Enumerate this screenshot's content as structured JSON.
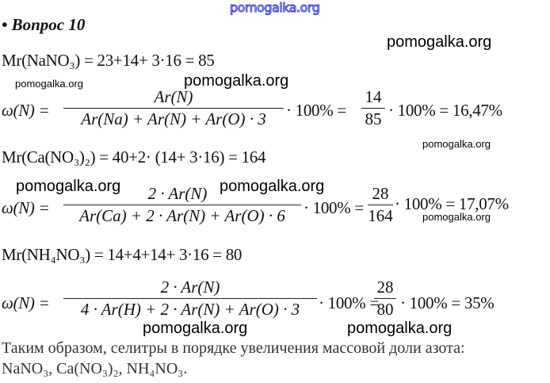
{
  "watermarks": {
    "top": "pomogalka.org",
    "items": [
      "pomogalka.org",
      "pomogalka.org",
      "pomogalka.org",
      "pomogalka.org",
      "pomogalka.org",
      "pomogalka.org",
      "pomogalka.org",
      "pomogalka.org",
      "pomogalka.org"
    ]
  },
  "heading": "• Вопрос 10",
  "lines": {
    "mr1": "Mr(NaNO₃) = 23+14+ 3·16 = 85",
    "mr2": "Mr(Ca(NO₃)₂) = 40+2· (14+ 3·16) = 164",
    "mr3": "Mr(NH₄NO₃) = 14+4+14+ 3·16 = 80"
  },
  "formulas": [
    {
      "lhs": "ω(N) =",
      "numerator": "Ar(N)",
      "denominator": "Ar(Na) + Ar(N) + Ar(O) · 3",
      "mid": "· 100% =",
      "frac_num": "14",
      "frac_den": "85",
      "result": "· 100% = 16,47%"
    },
    {
      "lhs": "ω(N) =",
      "numerator": "2 · Ar(N)",
      "denominator": "Ar(Ca) + 2 · Ar(N) + Ar(O) · 6",
      "mid": "· 100% =",
      "frac_num": "28",
      "frac_den": "164",
      "result": "· 100% = 17,07%"
    },
    {
      "lhs": "ω(N) =",
      "numerator": "2 · Ar(N)",
      "denominator": "4 · Ar(H) + 2 · Ar(N) + Ar(O) · 3",
      "mid": "· 100% =",
      "frac_num": "28",
      "frac_den": "80",
      "result": "· 100% = 35%"
    }
  ],
  "conclusion": {
    "line1": "Таким образом, селитры в порядке увеличения массовой доли азота:",
    "line2": "NaNO₃, Ca(NO₃)₂, NH₄NO₃."
  }
}
